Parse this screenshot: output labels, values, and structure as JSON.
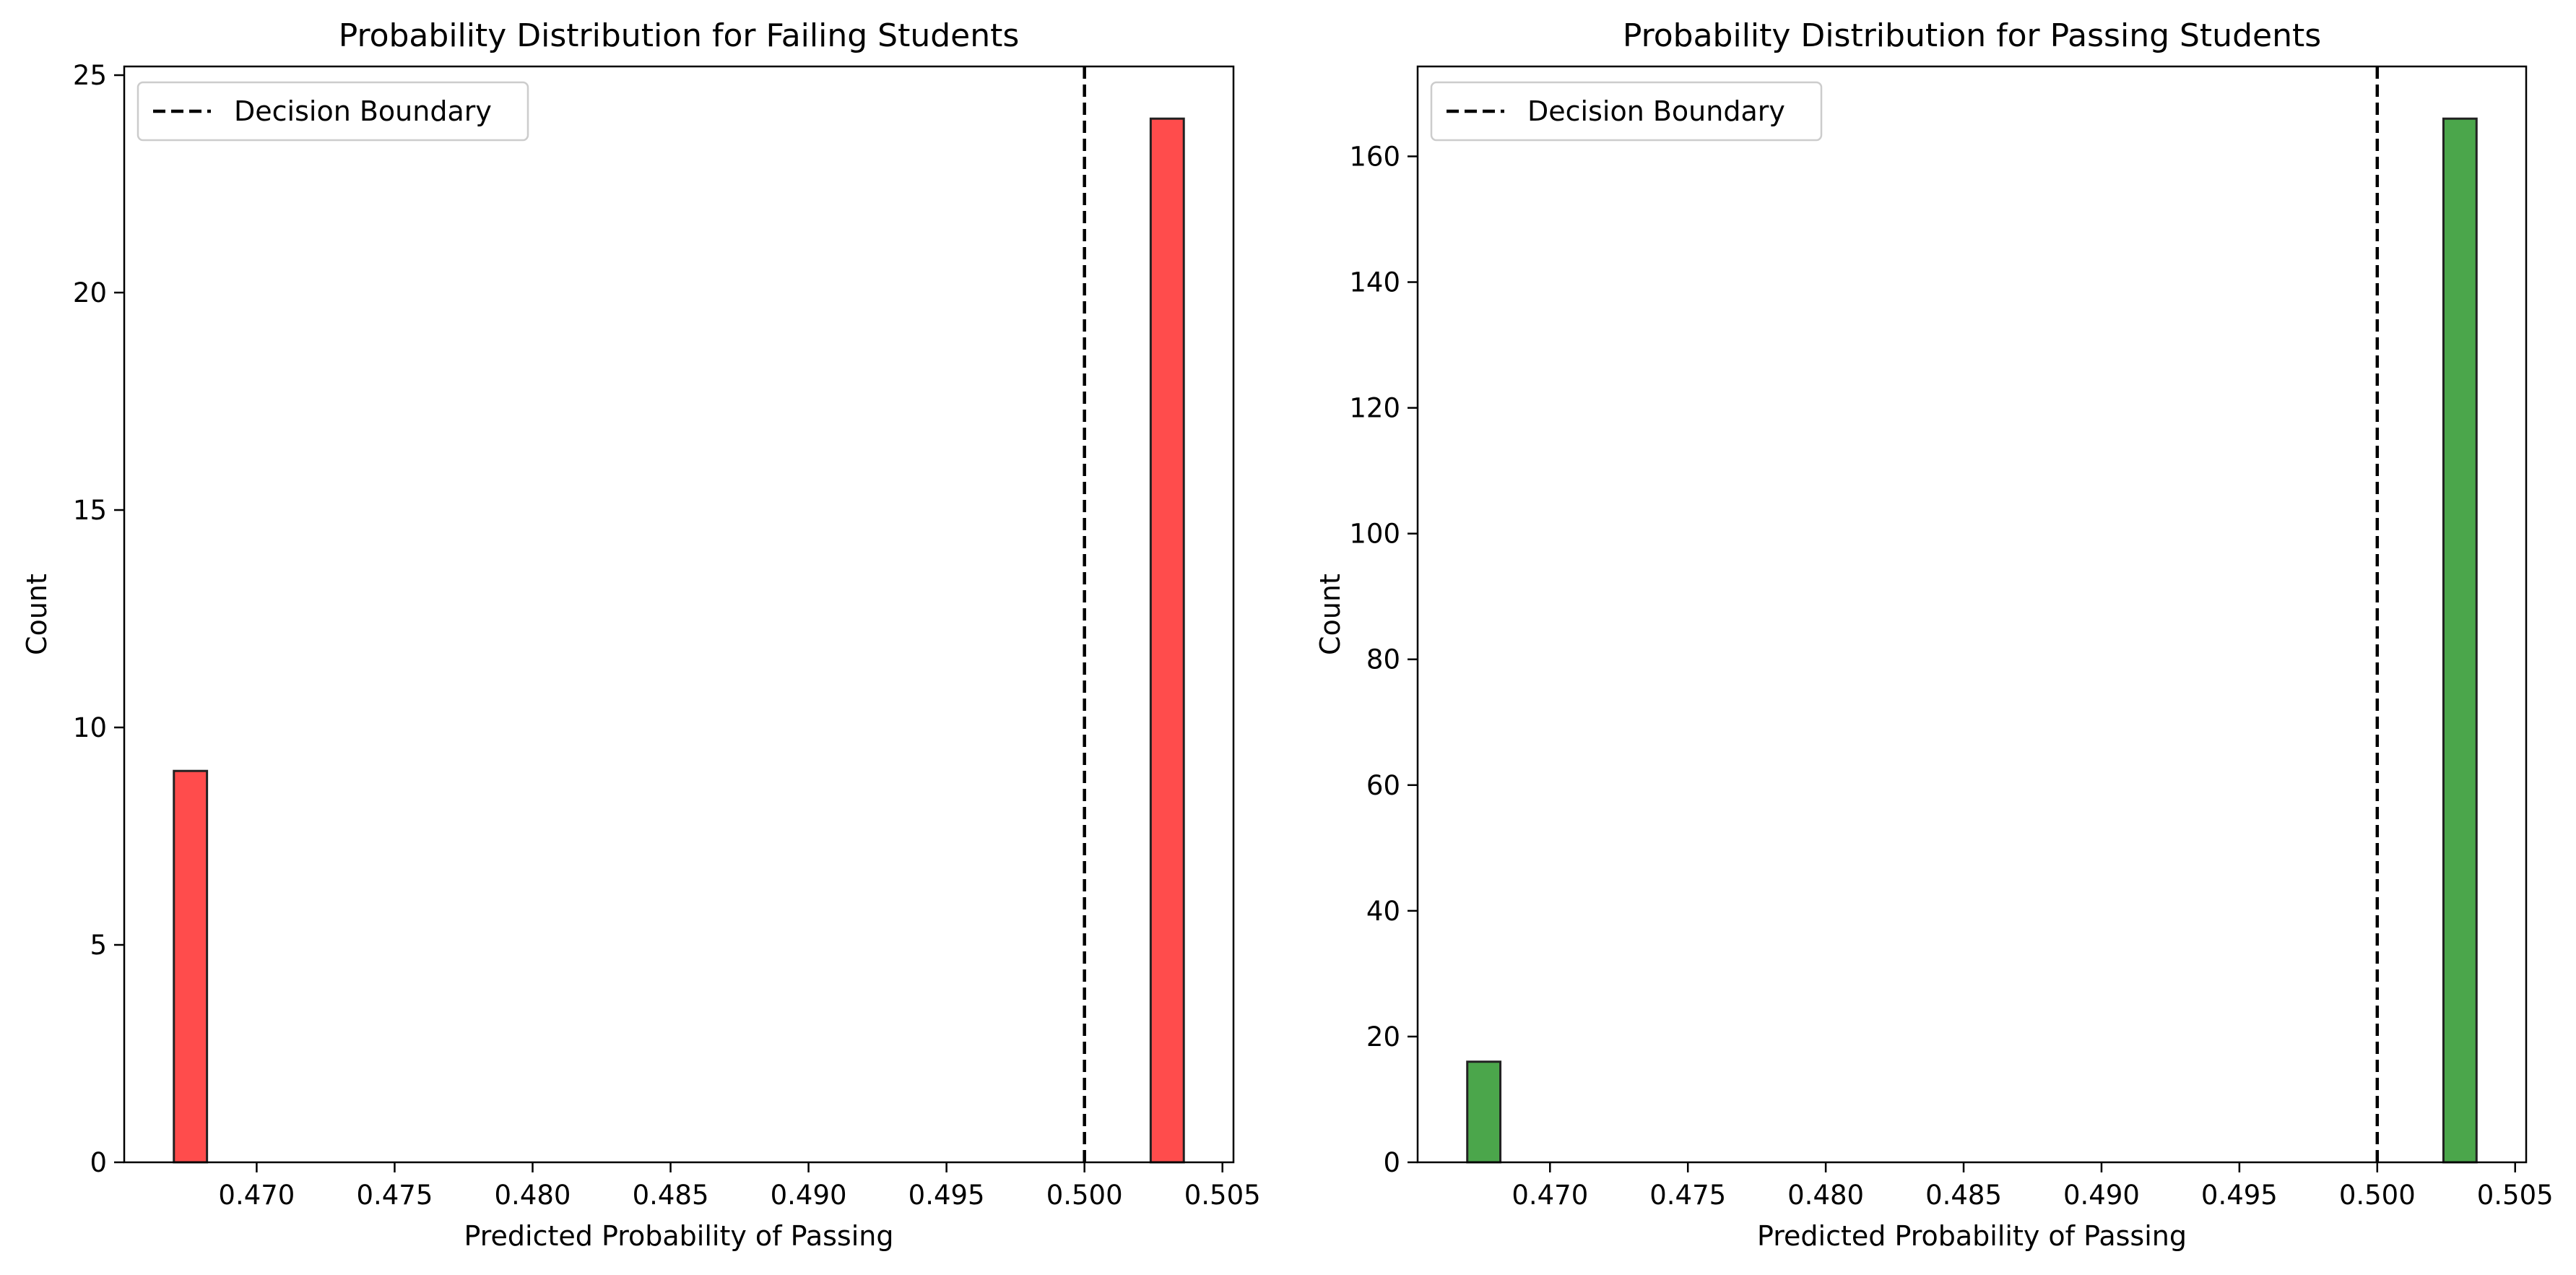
{
  "chart_data": [
    {
      "type": "bar",
      "title": "Probability Distribution for Failing Students",
      "xlabel": "Predicted Probability of Passing",
      "ylabel": "Count",
      "xlim": [
        0.4652,
        0.5054
      ],
      "ylim": [
        0,
        25.2
      ],
      "xticks": [
        "0.470",
        "0.475",
        "0.480",
        "0.485",
        "0.490",
        "0.495",
        "0.500",
        "0.505"
      ],
      "xtick_values": [
        0.47,
        0.475,
        0.48,
        0.485,
        0.49,
        0.495,
        0.5,
        0.505
      ],
      "yticks": [
        "0",
        "5",
        "10",
        "15",
        "20",
        "25"
      ],
      "ytick_values": [
        0,
        5,
        10,
        15,
        20,
        25
      ],
      "bins": [
        {
          "x0": 0.467,
          "x1": 0.4682,
          "count": 9
        },
        {
          "x0": 0.5024,
          "x1": 0.5036,
          "count": 24
        }
      ],
      "bar_color": "#ff4c4c",
      "decision_boundary": 0.5,
      "legend": {
        "label": "Decision Boundary",
        "position": "upper-left"
      }
    },
    {
      "type": "bar",
      "title": "Probability Distribution for Passing Students",
      "xlabel": "Predicted Probability of Passing",
      "ylabel": "Count",
      "xlim": [
        0.4652,
        0.5054
      ],
      "ylim": [
        0,
        174.3
      ],
      "xticks": [
        "0.470",
        "0.475",
        "0.480",
        "0.485",
        "0.490",
        "0.495",
        "0.500",
        "0.505"
      ],
      "xtick_values": [
        0.47,
        0.475,
        0.48,
        0.485,
        0.49,
        0.495,
        0.5,
        0.505
      ],
      "yticks": [
        "0",
        "20",
        "40",
        "60",
        "80",
        "100",
        "120",
        "140",
        "160"
      ],
      "ytick_values": [
        0,
        20,
        40,
        60,
        80,
        100,
        120,
        140,
        160
      ],
      "bins": [
        {
          "x0": 0.467,
          "x1": 0.4682,
          "count": 16
        },
        {
          "x0": 0.5024,
          "x1": 0.5036,
          "count": 166
        }
      ],
      "bar_color": "#4ba64b",
      "decision_boundary": 0.5,
      "legend": {
        "label": "Decision Boundary",
        "position": "upper-left"
      }
    }
  ]
}
